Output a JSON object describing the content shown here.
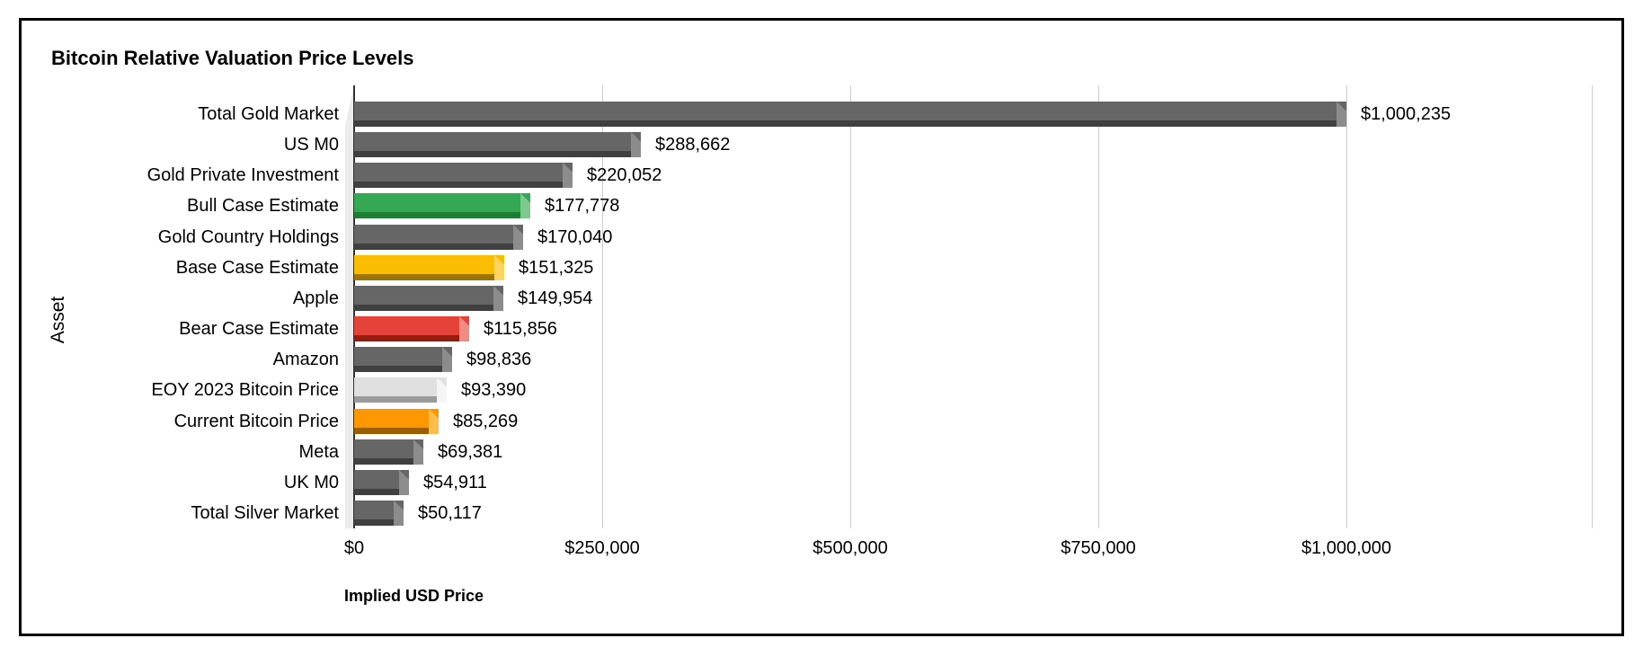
{
  "frame": {
    "background": "#ffffff",
    "border_color": "#000000"
  },
  "chart_data": {
    "type": "bar",
    "orientation": "horizontal",
    "title": "Bitcoin Relative Valuation Price Levels",
    "xlabel": "Implied USD Price",
    "ylabel": "Asset",
    "categories": [
      "Total Gold Market",
      "US M0",
      "Gold Private Investment",
      "Bull Case Estimate",
      "Gold Country Holdings",
      "Base Case Estimate",
      "Apple",
      "Bear Case Estimate",
      "Amazon",
      "EOY 2023 Bitcoin Price",
      "Current Bitcoin Price",
      "Meta",
      "UK M0",
      "Total Silver Market"
    ],
    "values": [
      1000235,
      288662,
      220052,
      177778,
      170040,
      151325,
      149954,
      115856,
      98836,
      93390,
      85269,
      69381,
      54911,
      50117
    ],
    "value_labels": [
      "$1,000,235",
      "$288,662",
      "$220,052",
      "$177,778",
      "$170,040",
      "$151,325",
      "$149,954",
      "$115,856",
      "$98,836",
      "$93,390",
      "$85,269",
      "$69,381",
      "$54,911",
      "$50,117"
    ],
    "bar_color_keys": [
      "gray",
      "gray",
      "gray",
      "green",
      "gray",
      "yellow",
      "gray",
      "red",
      "gray",
      "lightgray",
      "orange",
      "gray",
      "gray",
      "gray"
    ],
    "palette": {
      "gray": {
        "face": "#666666",
        "band": "#404040",
        "cap": "#8c8c8c"
      },
      "green": {
        "face": "#34a853",
        "band": "#1e7e34",
        "cap": "#7fc98f"
      },
      "yellow": {
        "face": "#fbbc04",
        "band": "#9c7400",
        "cap": "#fdd45f"
      },
      "red": {
        "face": "#e5433a",
        "band": "#971c10",
        "cap": "#f08c84"
      },
      "lightgray": {
        "face": "#e0e0e0",
        "band": "#9a9a9a",
        "cap": "#f5f5f5"
      },
      "orange": {
        "face": "#ff9800",
        "band": "#9c5f00",
        "cap": "#fdbd4b"
      }
    },
    "x_ticks": [
      {
        "label": "$0",
        "value": 0
      },
      {
        "label": "$250,000",
        "value": 250000
      },
      {
        "label": "$500,000",
        "value": 500000
      },
      {
        "label": "$750,000",
        "value": 750000
      },
      {
        "label": "$1,000,000",
        "value": 1000000
      }
    ],
    "xlim": [
      0,
      1250000
    ],
    "grid": true,
    "legend": "none",
    "axis_color": "#333333",
    "gridline_color": "#cccccc",
    "value_label_position": "outside-right"
  }
}
